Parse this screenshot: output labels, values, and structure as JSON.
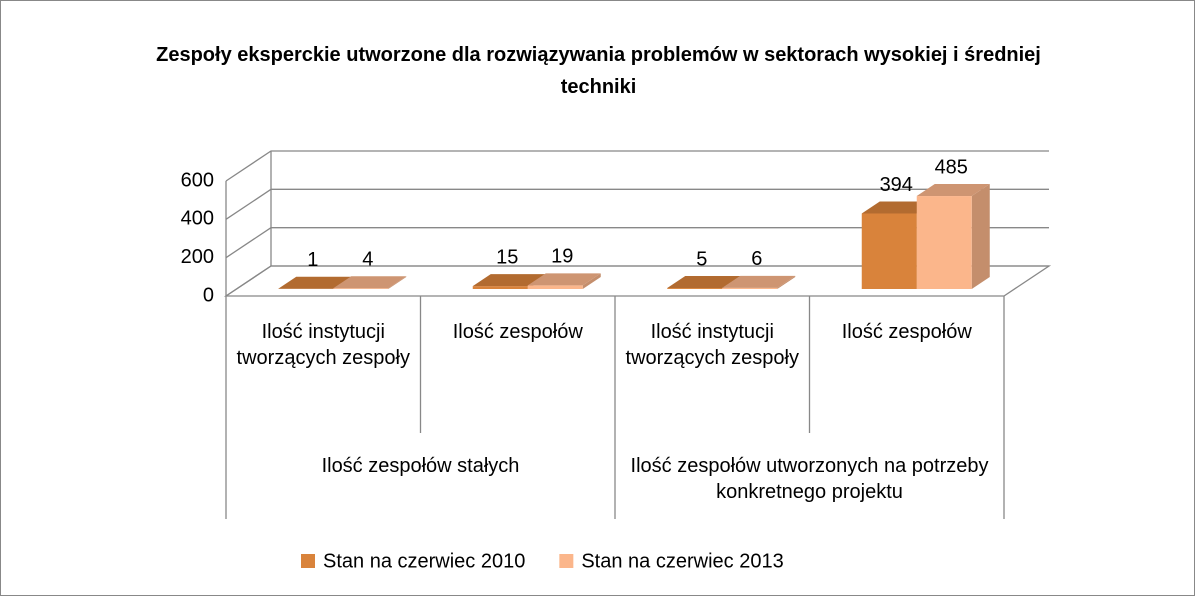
{
  "chart_data": {
    "type": "bar3d",
    "title": "Zespoły eksperckie utworzone dla rozwiązywania problemów w sektorach wysokiej i średniej techniki",
    "groups": [
      {
        "name": "Ilość zespołów stałych",
        "categories": [
          "Ilość instytucji tworzących zespoły",
          "Ilość zespołów"
        ]
      },
      {
        "name": "Ilość zespołów utworzonych na potrzeby konkretnego projektu",
        "categories": [
          "Ilość instytucji tworzących zespoły",
          "Ilość zespołów"
        ]
      }
    ],
    "series": [
      {
        "name": "Stan na czerwiec 2010",
        "color": "#d9833b",
        "values": [
          1,
          15,
          5,
          394
        ]
      },
      {
        "name": "Stan na czerwiec 2013",
        "color": "#fbb68b",
        "values": [
          4,
          19,
          6,
          485
        ]
      }
    ],
    "ylim": [
      0,
      600
    ],
    "yticks": [
      0,
      200,
      400,
      600
    ],
    "grid": true,
    "legend": "bottom"
  }
}
